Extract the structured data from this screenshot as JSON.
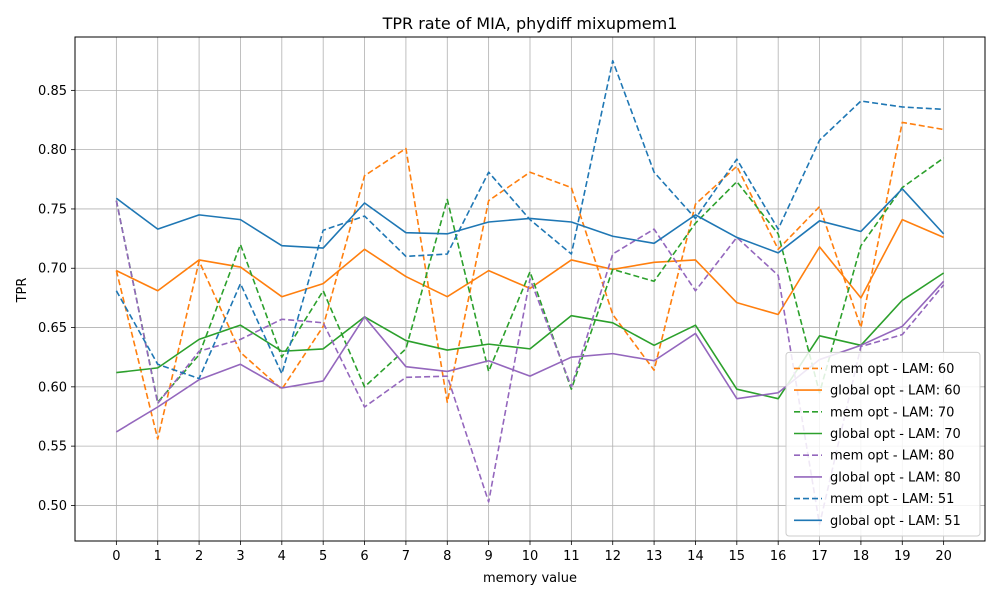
{
  "chart_data": {
    "type": "line",
    "title": "TPR rate of MIA, phydiff mixupmem1",
    "xlabel": "memory value",
    "ylabel": "TPR",
    "x": [
      0,
      1,
      2,
      3,
      4,
      5,
      6,
      7,
      8,
      9,
      10,
      11,
      12,
      13,
      14,
      15,
      16,
      17,
      18,
      19,
      20
    ],
    "xticks": [
      "0",
      "1",
      "2",
      "3",
      "4",
      "5",
      "6",
      "7",
      "8",
      "9",
      "10",
      "11",
      "12",
      "13",
      "14",
      "15",
      "16",
      "17",
      "18",
      "19",
      "20"
    ],
    "yticks": [
      "0.50",
      "0.55",
      "0.60",
      "0.65",
      "0.70",
      "0.75",
      "0.80",
      "0.85"
    ],
    "xlim": [
      -1,
      21
    ],
    "ylim": [
      0.47,
      0.895
    ],
    "grid": true,
    "legend_position": "lower-right",
    "series": [
      {
        "name": "mem opt - LAM: 60",
        "style": "dashed",
        "color": "#ff7f0e",
        "values": [
          0.698,
          0.556,
          0.706,
          0.629,
          0.598,
          0.651,
          0.778,
          0.801,
          0.587,
          0.757,
          0.781,
          0.768,
          0.661,
          0.614,
          0.754,
          0.786,
          0.716,
          0.752,
          0.65,
          0.823,
          0.817
        ]
      },
      {
        "name": "global opt - LAM: 60",
        "style": "solid",
        "color": "#ff7f0e",
        "values": [
          0.698,
          0.681,
          0.707,
          0.701,
          0.676,
          0.687,
          0.716,
          0.693,
          0.676,
          0.698,
          0.683,
          0.707,
          0.699,
          0.705,
          0.707,
          0.671,
          0.661,
          0.718,
          0.675,
          0.741,
          0.726
        ]
      },
      {
        "name": "mem opt - LAM: 70",
        "style": "dashed",
        "color": "#2ca02c",
        "values": [
          0.757,
          0.587,
          0.627,
          0.72,
          0.625,
          0.681,
          0.6,
          0.632,
          0.758,
          0.613,
          0.697,
          0.598,
          0.699,
          0.689,
          0.738,
          0.773,
          0.729,
          0.595,
          0.719,
          0.768,
          0.793
        ]
      },
      {
        "name": "global opt - LAM: 70",
        "style": "solid",
        "color": "#2ca02c",
        "values": [
          0.612,
          0.616,
          0.64,
          0.652,
          0.63,
          0.632,
          0.659,
          0.639,
          0.631,
          0.636,
          0.632,
          0.66,
          0.654,
          0.635,
          0.652,
          0.598,
          0.59,
          0.643,
          0.635,
          0.673,
          0.696
        ]
      },
      {
        "name": "mem opt - LAM: 80",
        "style": "dashed",
        "color": "#9467bd",
        "values": [
          0.757,
          0.586,
          0.63,
          0.64,
          0.657,
          0.654,
          0.583,
          0.608,
          0.609,
          0.503,
          0.691,
          0.6,
          0.712,
          0.733,
          0.681,
          0.726,
          0.694,
          0.484,
          0.634,
          0.644,
          0.686
        ]
      },
      {
        "name": "global opt - LAM: 80",
        "style": "solid",
        "color": "#9467bd",
        "values": [
          0.562,
          0.583,
          0.606,
          0.619,
          0.599,
          0.605,
          0.659,
          0.617,
          0.613,
          0.622,
          0.609,
          0.625,
          0.628,
          0.622,
          0.645,
          0.59,
          0.595,
          0.623,
          0.635,
          0.651,
          0.689
        ]
      },
      {
        "name": "mem opt - LAM: 51",
        "style": "dashed",
        "color": "#1f77b4",
        "values": [
          0.681,
          0.619,
          0.607,
          0.687,
          0.611,
          0.732,
          0.744,
          0.71,
          0.712,
          0.781,
          0.741,
          0.712,
          0.875,
          0.781,
          0.742,
          0.792,
          0.733,
          0.808,
          0.841,
          0.836,
          0.834
        ]
      },
      {
        "name": "global opt - LAM: 51",
        "style": "solid",
        "color": "#1f77b4",
        "values": [
          0.759,
          0.733,
          0.745,
          0.741,
          0.719,
          0.717,
          0.755,
          0.73,
          0.729,
          0.739,
          0.742,
          0.739,
          0.727,
          0.721,
          0.745,
          0.726,
          0.713,
          0.74,
          0.731,
          0.767,
          0.729
        ]
      }
    ]
  }
}
